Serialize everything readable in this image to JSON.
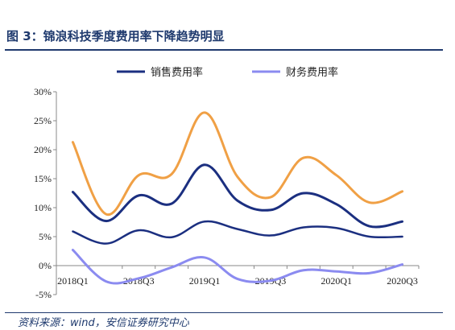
{
  "header": {
    "title": "图 3：锦浪科技季度费用率下降趋势明显"
  },
  "footer": {
    "source": "资料来源：wind，安信证券研究中心"
  },
  "chart_data": {
    "type": "line",
    "x": [
      "2018Q1",
      "2018Q2",
      "2018Q3",
      "2018Q4",
      "2019Q1",
      "2019Q2",
      "2019Q3",
      "2019Q4",
      "2020Q1",
      "2020Q2",
      "2020Q3"
    ],
    "x_tick_labels": [
      "2018Q1",
      "2018Q3",
      "2019Q1",
      "2019Q3",
      "2020Q1",
      "2020Q3"
    ],
    "y_tick_labels": [
      "-5%",
      "0%",
      "5%",
      "10%",
      "15%",
      "20%",
      "25%",
      "30%"
    ],
    "ylim": [
      -5,
      30
    ],
    "y_unit": "%",
    "grid": false,
    "legend_position": "top",
    "series": [
      {
        "name": "销售费用率",
        "color": "#1b2f80",
        "values": [
          12.7,
          7.7,
          12.1,
          10.7,
          17.4,
          11.2,
          9.6,
          12.5,
          10.6,
          6.8,
          7.6
        ]
      },
      {
        "name": "财务费用率",
        "color": "#8b8bf0",
        "values": [
          2.7,
          -2.7,
          -2.2,
          -0.3,
          1.4,
          -2.3,
          -2.6,
          -0.8,
          -1.0,
          -1.3,
          0.2
        ]
      },
      {
        "name": "",
        "color": "#f0a045",
        "values": [
          21.3,
          8.9,
          15.6,
          15.8,
          26.4,
          15.3,
          11.8,
          18.6,
          15.6,
          10.9,
          12.8
        ]
      },
      {
        "name": "",
        "color": "#1b2f80",
        "values": [
          5.9,
          3.8,
          6.1,
          4.9,
          7.6,
          6.3,
          5.2,
          6.6,
          6.5,
          5.0,
          5.0
        ]
      }
    ]
  }
}
